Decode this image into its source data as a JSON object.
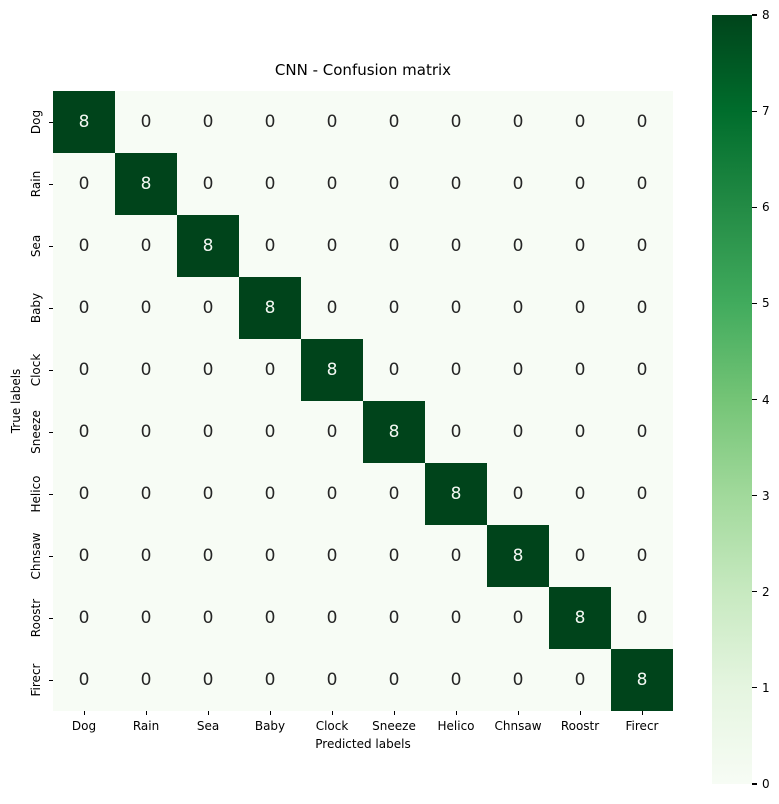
{
  "chart_data": {
    "type": "heatmap",
    "title": "CNN - Confusion matrix",
    "xlabel": "Predicted labels",
    "ylabel": "True labels",
    "x_categories": [
      "Dog",
      "Rain",
      "Sea",
      "Baby",
      "Clock",
      "Sneeze",
      "Helico",
      "Chnsaw",
      "Roostr",
      "Firecr"
    ],
    "y_categories": [
      "Dog",
      "Rain",
      "Sea",
      "Baby",
      "Clock",
      "Sneeze",
      "Helico",
      "Chnsaw",
      "Roostr",
      "Firecr"
    ],
    "matrix": [
      [
        8,
        0,
        0,
        0,
        0,
        0,
        0,
        0,
        0,
        0
      ],
      [
        0,
        8,
        0,
        0,
        0,
        0,
        0,
        0,
        0,
        0
      ],
      [
        0,
        0,
        8,
        0,
        0,
        0,
        0,
        0,
        0,
        0
      ],
      [
        0,
        0,
        0,
        8,
        0,
        0,
        0,
        0,
        0,
        0
      ],
      [
        0,
        0,
        0,
        0,
        8,
        0,
        0,
        0,
        0,
        0
      ],
      [
        0,
        0,
        0,
        0,
        0,
        8,
        0,
        0,
        0,
        0
      ],
      [
        0,
        0,
        0,
        0,
        0,
        0,
        8,
        0,
        0,
        0
      ],
      [
        0,
        0,
        0,
        0,
        0,
        0,
        0,
        8,
        0,
        0
      ],
      [
        0,
        0,
        0,
        0,
        0,
        0,
        0,
        0,
        8,
        0
      ],
      [
        0,
        0,
        0,
        0,
        0,
        0,
        0,
        0,
        0,
        8
      ]
    ],
    "vmin": 0,
    "vmax": 8,
    "colormap": "Greens",
    "colormap_stops": [
      "#f7fcf5",
      "#e5f5e0",
      "#c7e9c0",
      "#a1d99b",
      "#74c476",
      "#41ab5d",
      "#238b45",
      "#006d2c",
      "#00441b"
    ],
    "annot_color_on_dark": "#f2f7f2",
    "annot_color_on_light": "#262626",
    "grid": false,
    "legend_position": "colorbar-right",
    "colorbar_ticks": [
      0,
      1,
      2,
      3,
      4,
      5,
      6,
      7,
      8
    ]
  }
}
